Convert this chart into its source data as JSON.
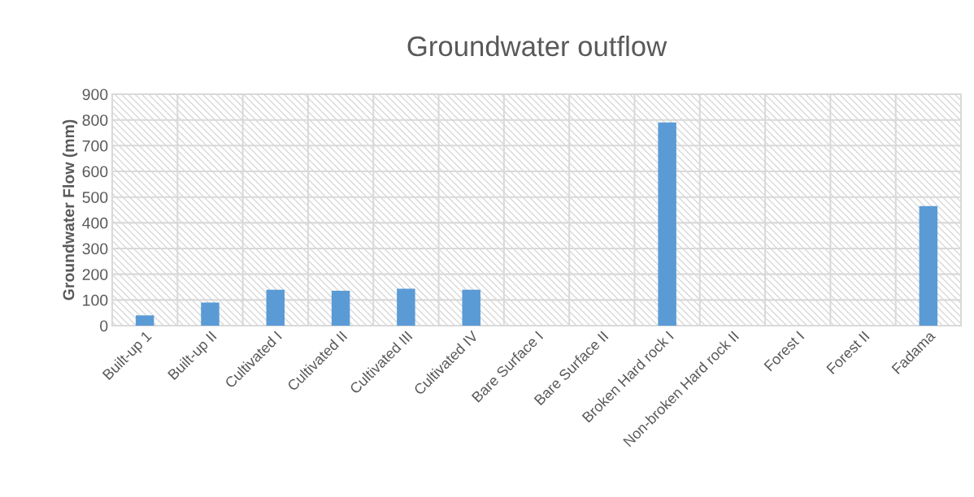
{
  "chart_data": {
    "type": "bar",
    "title": "Groundwater outflow",
    "ylabel": "Groundwater Flow (mm)",
    "categories": [
      "Built-up 1",
      "Built-up II",
      "Cultivated I",
      "Cultivated II",
      "Cultivated III",
      "Cultivated IV",
      "Bare Surface I",
      "Bare Surface II",
      "Broken Hard rock I",
      "Non-broken Hard rock II",
      "Forest I",
      "Forest II",
      "Fadama"
    ],
    "values": [
      40,
      90,
      140,
      136,
      144,
      140,
      0,
      0,
      790,
      0,
      0,
      0,
      465
    ],
    "color": "#5b9bd5",
    "ylim": [
      0,
      900
    ],
    "yticks": [
      0,
      100,
      200,
      300,
      400,
      500,
      600,
      700,
      800,
      900
    ],
    "grid": true
  }
}
